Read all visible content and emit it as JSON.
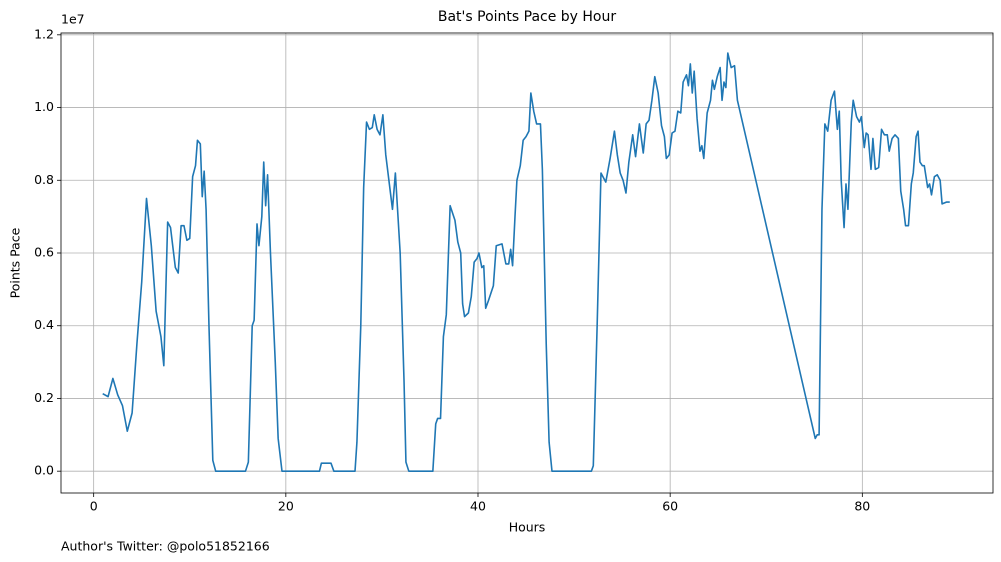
{
  "chart_data": {
    "type": "line",
    "title": "Bat's Points Pace by Hour",
    "xlabel": "Hours",
    "ylabel": "Points Pace",
    "y_offset_label": "1e7",
    "annotation": "Author's Twitter: @polo51852166",
    "grid": true,
    "color": "#1f77b4",
    "xlim": [
      -3.4,
      93.6
    ],
    "ylim": [
      -0.06,
      1.205
    ],
    "xticks": [
      0,
      20,
      40,
      60,
      80
    ],
    "yticks": [
      {
        "value": 0,
        "label": "0.0"
      },
      0.2,
      0.4,
      0.6,
      0.8,
      {
        "value": 1,
        "label": "1.0"
      },
      1.2
    ],
    "x": [
      0.94,
      1.5,
      2.0,
      2.5,
      3.0,
      3.5,
      4.0,
      4.5,
      5.0,
      5.5,
      6.0,
      6.5,
      7.0,
      7.3,
      7.7,
      8.0,
      8.5,
      8.8,
      9.1,
      9.4,
      9.7,
      10.0,
      10.3,
      10.6,
      10.8,
      11.1,
      11.3,
      11.5,
      11.7,
      12.0,
      12.4,
      12.7,
      15.8,
      16.1,
      16.5,
      16.7,
      17.0,
      17.2,
      17.5,
      17.7,
      17.9,
      18.1,
      18.4,
      18.9,
      19.2,
      19.6,
      23.5,
      23.7,
      24.7,
      25.0,
      27.2,
      27.4,
      27.8,
      28.1,
      28.4,
      28.7,
      29.0,
      29.2,
      29.5,
      29.8,
      30.1,
      30.4,
      31.1,
      31.4,
      31.9,
      32.3,
      32.5,
      32.8,
      35.3,
      35.6,
      35.8,
      36.1,
      36.4,
      36.7,
      37.1,
      37.6,
      37.9,
      38.2,
      38.4,
      38.6,
      39.0,
      39.3,
      39.6,
      39.9,
      40.1,
      40.4,
      40.6,
      40.8,
      41.1,
      41.6,
      41.9,
      42.5,
      42.9,
      43.2,
      43.4,
      43.6,
      43.85,
      44.05,
      44.4,
      44.7,
      45.0,
      45.3,
      45.5,
      45.8,
      46.1,
      46.5,
      46.7,
      47.1,
      47.4,
      47.7,
      51.8,
      52.0,
      52.4,
      52.8,
      53.3,
      53.75,
      54.2,
      54.5,
      54.8,
      55.1,
      55.4,
      55.7,
      56.1,
      56.4,
      56.8,
      57.2,
      57.5,
      57.8,
      58.1,
      58.4,
      58.75,
      59.1,
      59.4,
      59.6,
      59.9,
      60.2,
      60.5,
      60.8,
      61.1,
      61.35,
      61.7,
      61.9,
      62.1,
      62.3,
      62.5,
      62.8,
      63.1,
      63.3,
      63.5,
      63.85,
      64.2,
      64.4,
      64.6,
      64.9,
      65.2,
      65.4,
      65.6,
      65.8,
      66.0,
      66.35,
      66.7,
      67.0,
      75.1,
      75.3,
      75.5,
      75.8,
      76.1,
      76.4,
      76.75,
      77.1,
      77.4,
      77.6,
      77.8,
      78.1,
      78.3,
      78.5,
      78.85,
      79.05,
      79.4,
      79.7,
      79.9,
      80.2,
      80.4,
      80.6,
      80.9,
      81.1,
      81.35,
      81.7,
      82.0,
      82.3,
      82.6,
      82.8,
      83.1,
      83.4,
      83.75,
      84.0,
      84.3,
      84.5,
      84.8,
      85.1,
      85.3,
      85.6,
      85.8,
      86.0,
      86.25,
      86.45,
      86.8,
      87.0,
      87.2,
      87.5,
      87.8,
      88.1,
      88.3,
      88.75,
      89.1
    ],
    "values": [
      0.213,
      0.205,
      0.255,
      0.21,
      0.18,
      0.11,
      0.16,
      0.35,
      0.52,
      0.75,
      0.62,
      0.44,
      0.37,
      0.29,
      0.685,
      0.67,
      0.56,
      0.545,
      0.675,
      0.675,
      0.635,
      0.64,
      0.81,
      0.84,
      0.91,
      0.9,
      0.755,
      0.825,
      0.72,
      0.4,
      0.03,
      0,
      0,
      0.025,
      0.4,
      0.415,
      0.68,
      0.62,
      0.7,
      0.85,
      0.73,
      0.815,
      0.6,
      0.3,
      0.09,
      0,
      0,
      0.022,
      0.022,
      0,
      0,
      0.08,
      0.4,
      0.78,
      0.96,
      0.94,
      0.945,
      0.98,
      0.94,
      0.925,
      0.98,
      0.87,
      0.72,
      0.82,
      0.6,
      0.25,
      0.025,
      0,
      0,
      0.13,
      0.145,
      0.145,
      0.37,
      0.43,
      0.73,
      0.69,
      0.63,
      0.6,
      0.46,
      0.425,
      0.435,
      0.48,
      0.575,
      0.585,
      0.6,
      0.56,
      0.565,
      0.448,
      0.47,
      0.51,
      0.62,
      0.625,
      0.57,
      0.57,
      0.61,
      0.565,
      0.7,
      0.8,
      0.84,
      0.91,
      0.92,
      0.935,
      1.04,
      0.99,
      0.955,
      0.955,
      0.83,
      0.35,
      0.08,
      0,
      0,
      0.015,
      0.4,
      0.82,
      0.795,
      0.86,
      0.935,
      0.87,
      0.82,
      0.8,
      0.765,
      0.85,
      0.925,
      0.865,
      0.955,
      0.875,
      0.955,
      0.965,
      1.02,
      1.085,
      1.04,
      0.95,
      0.92,
      0.86,
      0.87,
      0.93,
      0.935,
      0.99,
      0.985,
      1.07,
      1.09,
      1.06,
      1.12,
      1.04,
      1.1,
      0.97,
      0.88,
      0.895,
      0.86,
      0.985,
      1.02,
      1.075,
      1.05,
      1.085,
      1.11,
      1.02,
      1.07,
      1.055,
      1.15,
      1.11,
      1.115,
      1.02,
      0.09,
      0.1,
      0.1,
      0.72,
      0.955,
      0.935,
      1.02,
      1.045,
      0.94,
      0.99,
      0.8,
      0.67,
      0.79,
      0.72,
      0.96,
      1.02,
      0.975,
      0.96,
      0.975,
      0.89,
      0.93,
      0.925,
      0.83,
      0.915,
      0.83,
      0.835,
      0.94,
      0.925,
      0.925,
      0.88,
      0.915,
      0.925,
      0.915,
      0.77,
      0.72,
      0.675,
      0.675,
      0.79,
      0.82,
      0.92,
      0.935,
      0.85,
      0.84,
      0.84,
      0.78,
      0.79,
      0.76,
      0.81,
      0.815,
      0.8,
      0.735,
      0.74,
      0.74
    ]
  }
}
